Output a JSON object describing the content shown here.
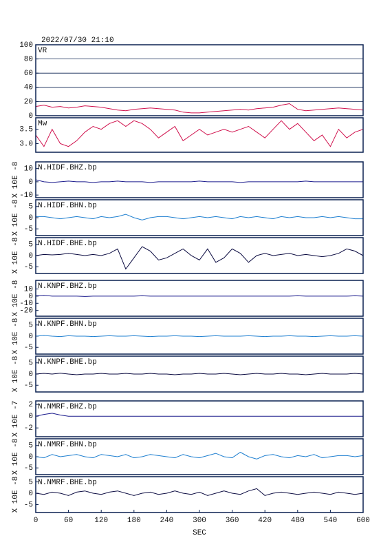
{
  "chart_data": [
    {
      "type": "line",
      "title": "2022/07/30 21:10",
      "label": "VR",
      "color": "#d0104c",
      "grid": true,
      "xlim": [
        0,
        600
      ],
      "ylim": [
        0,
        100
      ],
      "yticks": [
        0,
        20,
        40,
        60,
        80,
        100
      ],
      "x": [
        0,
        15,
        30,
        45,
        60,
        75,
        90,
        105,
        120,
        135,
        150,
        165,
        180,
        195,
        210,
        225,
        240,
        255,
        270,
        285,
        300,
        315,
        330,
        345,
        360,
        375,
        390,
        405,
        420,
        435,
        450,
        465,
        480,
        495,
        510,
        525,
        540,
        555,
        570,
        585,
        600
      ],
      "values": [
        13,
        15,
        12,
        13,
        11,
        12,
        14,
        13,
        12,
        10,
        8,
        7,
        9,
        10,
        11,
        10,
        9,
        8,
        5,
        4,
        4,
        5,
        6,
        7,
        8,
        9,
        8,
        10,
        11,
        12,
        15,
        17,
        9,
        7,
        8,
        9,
        10,
        11,
        10,
        9,
        8
      ]
    },
    {
      "type": "line",
      "label": "Mw",
      "color": "#d0104c",
      "xlim": [
        0,
        600
      ],
      "ylim": [
        2.7,
        3.9
      ],
      "yticks": [
        {
          "value": 3,
          "label": "3.0"
        },
        3.5
      ],
      "x": [
        0,
        15,
        30,
        45,
        60,
        75,
        90,
        105,
        120,
        135,
        150,
        165,
        180,
        195,
        210,
        225,
        240,
        255,
        270,
        285,
        300,
        315,
        330,
        345,
        360,
        375,
        390,
        405,
        420,
        435,
        450,
        465,
        480,
        495,
        510,
        525,
        540,
        555,
        570,
        585,
        600
      ],
      "values": [
        3.3,
        2.9,
        3.5,
        3.0,
        2.9,
        3.1,
        3.4,
        3.6,
        3.5,
        3.7,
        3.8,
        3.6,
        3.8,
        3.7,
        3.5,
        3.2,
        3.4,
        3.6,
        3.1,
        3.3,
        3.5,
        3.3,
        3.4,
        3.5,
        3.4,
        3.5,
        3.6,
        3.4,
        3.2,
        3.5,
        3.8,
        3.5,
        3.7,
        3.4,
        3.1,
        3.3,
        2.9,
        3.5,
        3.2,
        3.4,
        3.5
      ]
    },
    {
      "type": "line",
      "label": "N.HIDF.BHZ.bp",
      "ylabel": "X 10E -8",
      "color": "#1a1a8c",
      "xlim": [
        0,
        600
      ],
      "ylim": [
        -12,
        15
      ],
      "yticks": [
        -10,
        0,
        10
      ],
      "x": [
        0,
        15,
        30,
        45,
        60,
        75,
        90,
        105,
        120,
        135,
        150,
        165,
        180,
        195,
        210,
        225,
        240,
        255,
        270,
        285,
        300,
        315,
        330,
        345,
        360,
        375,
        390,
        405,
        420,
        435,
        450,
        465,
        480,
        495,
        510,
        525,
        540,
        555,
        570,
        585,
        600
      ],
      "values": [
        1.5,
        0,
        -0.5,
        0,
        0.5,
        0,
        0,
        -0.5,
        0,
        0,
        0.5,
        0,
        0,
        0,
        -0.5,
        0,
        0,
        0,
        0,
        0,
        0.5,
        0,
        0,
        0,
        0,
        -0.5,
        0,
        0,
        0,
        0,
        0,
        0,
        0,
        0.5,
        0,
        0,
        0,
        0,
        0,
        0,
        0
      ]
    },
    {
      "type": "line",
      "label": "N.HIDF.BHN.bp",
      "ylabel": "X 10E -8",
      "color": "#1e7fd0",
      "xlim": [
        0,
        600
      ],
      "ylim": [
        -8,
        8
      ],
      "yticks": [
        -5,
        0,
        5
      ],
      "x": [
        0,
        15,
        30,
        45,
        60,
        75,
        90,
        105,
        120,
        135,
        150,
        165,
        180,
        195,
        210,
        225,
        240,
        255,
        270,
        285,
        300,
        315,
        330,
        345,
        360,
        375,
        390,
        405,
        420,
        435,
        450,
        465,
        480,
        495,
        510,
        525,
        540,
        555,
        570,
        585,
        600
      ],
      "values": [
        0.5,
        0.5,
        0,
        -0.5,
        0,
        0.5,
        0,
        -0.5,
        0.5,
        0,
        0.5,
        1.5,
        0,
        -1,
        0,
        0.5,
        0.5,
        0,
        -0.5,
        0,
        0.5,
        0,
        0.5,
        0,
        -0.5,
        0.5,
        0,
        0.5,
        0,
        -0.5,
        0.5,
        0,
        0.5,
        0,
        0,
        0.5,
        0,
        0.5,
        0,
        -0.5,
        -0.5
      ]
    },
    {
      "type": "line",
      "label": "N.HIDF.BHE.bp",
      "ylabel": "X 10E -8",
      "color": "#0a0a40",
      "xlim": [
        0,
        600
      ],
      "ylim": [
        -8,
        8
      ],
      "yticks": [
        -5,
        0,
        5
      ],
      "x": [
        0,
        15,
        30,
        45,
        60,
        75,
        90,
        105,
        120,
        135,
        150,
        165,
        180,
        195,
        210,
        225,
        240,
        255,
        270,
        285,
        300,
        315,
        330,
        345,
        360,
        375,
        390,
        405,
        420,
        435,
        450,
        465,
        480,
        495,
        510,
        525,
        540,
        555,
        570,
        585,
        600
      ],
      "values": [
        0,
        0.5,
        0.3,
        0.5,
        1,
        0.5,
        0,
        0.5,
        0,
        1,
        3,
        -6,
        -1,
        4,
        2,
        -2,
        -1,
        1,
        3,
        0,
        -2,
        3,
        -3,
        -1,
        3,
        1,
        -3,
        0,
        1,
        0,
        0.5,
        1,
        0,
        0.5,
        0,
        -0.5,
        0,
        1,
        3,
        2,
        0
      ]
    },
    {
      "type": "line",
      "label": "N.KNPF.BHZ.bp",
      "ylabel": "X 10E -8",
      "color": "#1a1a8c",
      "xlim": [
        0,
        600
      ],
      "ylim": [
        -28,
        22
      ],
      "yticks": [
        -20,
        -10,
        0,
        10
      ],
      "x": [
        0,
        15,
        30,
        45,
        60,
        75,
        90,
        105,
        120,
        135,
        150,
        165,
        180,
        195,
        210,
        225,
        240,
        255,
        270,
        285,
        300,
        315,
        330,
        345,
        360,
        375,
        390,
        405,
        420,
        435,
        450,
        465,
        480,
        495,
        510,
        525,
        540,
        555,
        570,
        585,
        600
      ],
      "values": [
        0.5,
        1,
        0,
        0,
        0,
        0,
        -0.5,
        0,
        0,
        0,
        0,
        0,
        0,
        0.5,
        0,
        0,
        0,
        0,
        0,
        0,
        0,
        0,
        0,
        0,
        0,
        0,
        0,
        0,
        0,
        0,
        0,
        0,
        0.5,
        0,
        0,
        0,
        0,
        0,
        0,
        0.5,
        0
      ]
    },
    {
      "type": "line",
      "label": "N.KNPF.BHN.bp",
      "ylabel": "X 10E -8",
      "color": "#1e7fd0",
      "xlim": [
        0,
        600
      ],
      "ylim": [
        -8,
        8
      ],
      "yticks": [
        -5,
        0,
        5
      ],
      "x": [
        0,
        15,
        30,
        45,
        60,
        75,
        90,
        105,
        120,
        135,
        150,
        165,
        180,
        195,
        210,
        225,
        240,
        255,
        270,
        285,
        300,
        315,
        330,
        345,
        360,
        375,
        390,
        405,
        420,
        435,
        450,
        465,
        480,
        495,
        510,
        525,
        540,
        555,
        570,
        585,
        600
      ],
      "values": [
        0,
        0.3,
        0,
        -0.2,
        0.2,
        0,
        0,
        -0.2,
        0,
        0.2,
        0,
        0,
        0.2,
        0,
        -0.2,
        0,
        0,
        0.2,
        0,
        0,
        -0.2,
        0,
        0.2,
        0,
        0,
        0,
        0.2,
        0,
        -0.2,
        0,
        0,
        0.2,
        0,
        0,
        -0.2,
        0,
        0.2,
        0,
        0,
        0.2,
        0
      ]
    },
    {
      "type": "line",
      "label": "N.KNPF.BHE.bp",
      "ylabel": "X 10E -8",
      "color": "#0a0a40",
      "xlim": [
        0,
        600
      ],
      "ylim": [
        -8,
        8
      ],
      "yticks": [
        -5,
        0,
        5
      ],
      "x": [
        0,
        15,
        30,
        45,
        60,
        75,
        90,
        105,
        120,
        135,
        150,
        165,
        180,
        195,
        210,
        225,
        240,
        255,
        270,
        285,
        300,
        315,
        330,
        345,
        360,
        375,
        390,
        405,
        420,
        435,
        450,
        465,
        480,
        495,
        510,
        525,
        540,
        555,
        570,
        585,
        600
      ],
      "values": [
        0,
        0.3,
        0,
        0.4,
        0,
        -0.3,
        0,
        0,
        0.3,
        0,
        0,
        0.3,
        0,
        0,
        0.3,
        0,
        0,
        -0.3,
        0,
        0,
        0.3,
        0,
        0,
        0.3,
        0,
        -0.3,
        0,
        0.3,
        0,
        0,
        0.3,
        0,
        0,
        -0.3,
        0,
        0.3,
        0,
        0,
        0,
        0.3,
        0
      ]
    },
    {
      "type": "line",
      "label": "N.NMRF.BHZ.bp",
      "ylabel": "X 10E -7",
      "color": "#1a1a8c",
      "xlim": [
        0,
        600
      ],
      "ylim": [
        -3.5,
        2.6
      ],
      "yticks": [
        -2,
        0,
        2
      ],
      "x": [
        0,
        15,
        30,
        45,
        60,
        75,
        90,
        105,
        120,
        135,
        150,
        165,
        180,
        195,
        210,
        225,
        240,
        255,
        270,
        285,
        300,
        315,
        330,
        345,
        360,
        375,
        390,
        405,
        420,
        435,
        450,
        465,
        480,
        495,
        510,
        525,
        540,
        555,
        570,
        585,
        600
      ],
      "values": [
        0,
        0.3,
        0.5,
        0.2,
        0,
        0,
        0,
        0,
        0,
        0,
        0,
        0,
        0,
        0,
        0,
        0,
        0,
        0,
        0,
        0,
        0,
        0,
        0,
        0,
        0,
        0,
        0,
        0,
        0,
        0,
        0,
        0,
        0,
        0,
        0,
        0,
        0,
        0,
        0,
        0,
        0
      ]
    },
    {
      "type": "line",
      "label": "N.NMRF.BHN.bp",
      "ylabel": "X 10E -8",
      "color": "#1e7fd0",
      "xlim": [
        0,
        600
      ],
      "ylim": [
        -8,
        8
      ],
      "yticks": [
        -5,
        0,
        5
      ],
      "x": [
        0,
        15,
        30,
        45,
        60,
        75,
        90,
        105,
        120,
        135,
        150,
        165,
        180,
        195,
        210,
        225,
        240,
        255,
        270,
        285,
        300,
        315,
        330,
        345,
        360,
        375,
        390,
        405,
        420,
        435,
        450,
        465,
        480,
        495,
        510,
        525,
        540,
        555,
        570,
        585,
        600
      ],
      "values": [
        0,
        -0.5,
        1,
        0,
        0.5,
        1,
        0,
        -0.5,
        1,
        0.5,
        0,
        1,
        -0.5,
        0,
        1,
        0.5,
        0,
        -0.5,
        1,
        0,
        -0.5,
        0.5,
        1.5,
        0,
        -0.5,
        2,
        0,
        -1,
        0.5,
        1,
        0,
        -0.5,
        0.5,
        0,
        1,
        -0.5,
        0,
        0.5,
        0.5,
        0,
        0.5
      ]
    },
    {
      "type": "line",
      "label": "N.NMRF.BHE.bp",
      "ylabel": "X 10E -8",
      "color": "#0a0a40",
      "xlim": [
        0,
        600
      ],
      "ylim": [
        -8.5,
        7.3
      ],
      "yticks": [
        -5,
        0,
        5
      ],
      "xticks": [
        0,
        60,
        120,
        180,
        240,
        300,
        360,
        420,
        480,
        540,
        600
      ],
      "xlabel": "SEC",
      "x": [
        0,
        15,
        30,
        45,
        60,
        75,
        90,
        105,
        120,
        135,
        150,
        165,
        180,
        195,
        210,
        225,
        240,
        255,
        270,
        285,
        300,
        315,
        330,
        345,
        360,
        375,
        390,
        405,
        420,
        435,
        450,
        465,
        480,
        495,
        510,
        525,
        540,
        555,
        570,
        585,
        600
      ],
      "values": [
        0,
        -0.5,
        0.5,
        0,
        -1,
        0.5,
        1,
        0,
        -0.5,
        0.5,
        1,
        0,
        -1,
        0,
        0.5,
        -0.5,
        0,
        1,
        0,
        -0.5,
        0.5,
        -1,
        0,
        1,
        0,
        -0.5,
        1,
        2,
        -1,
        0,
        0.5,
        0,
        -0.5,
        0,
        0.5,
        0,
        -0.5,
        0.5,
        0,
        -0.5,
        0
      ]
    }
  ]
}
